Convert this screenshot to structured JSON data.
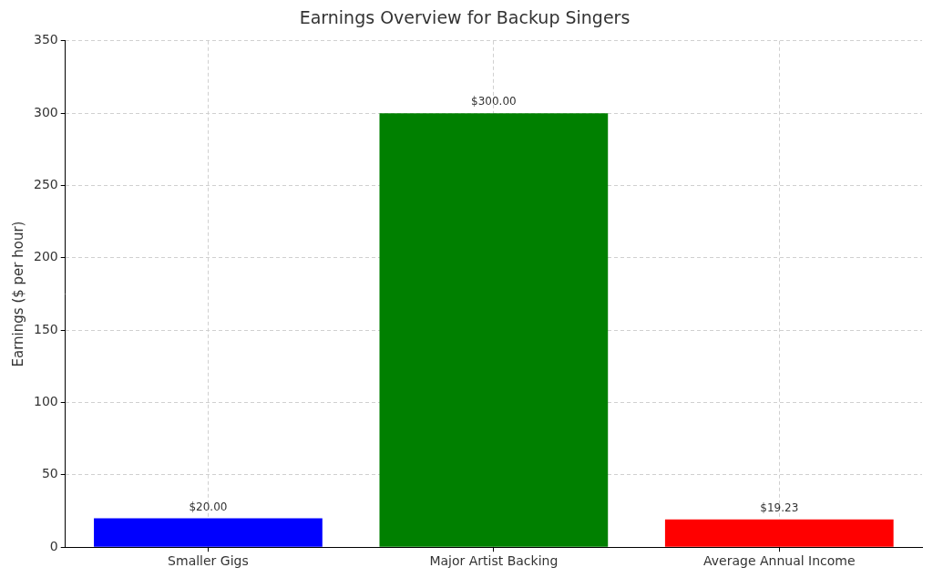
{
  "chart_data": {
    "type": "bar",
    "title": "Earnings Overview for Backup Singers",
    "y_label": "Earnings ($ per hour)",
    "categories": [
      "Smaller Gigs",
      "Major Artist Backing",
      "Average Annual Income"
    ],
    "values": [
      20.0,
      300.0,
      19.23
    ],
    "value_labels": [
      "$20.00",
      "$300.00",
      "$19.23"
    ],
    "colors": [
      "blue",
      "green",
      "red"
    ],
    "ylim": [
      0,
      350
    ],
    "yticks": [
      0,
      50,
      100,
      150,
      200,
      250,
      300,
      350
    ],
    "grid": true,
    "data_labels": true
  }
}
